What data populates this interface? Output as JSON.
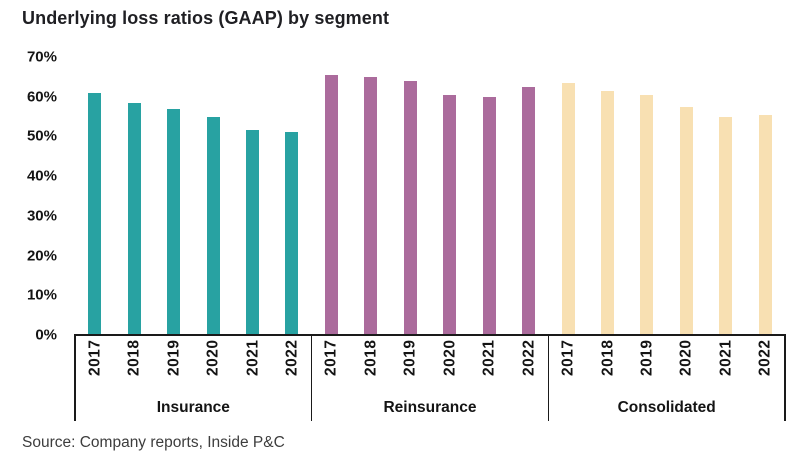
{
  "title": "Underlying loss ratios (GAAP) by segment",
  "source": "Source: Company reports, Inside P&C",
  "chart_data": {
    "type": "bar",
    "title": "Underlying loss ratios (GAAP) by segment",
    "xlabel": "",
    "ylabel": "",
    "ylim": [
      0,
      70
    ],
    "yticks": [
      {
        "label": "70%",
        "value": 70
      },
      {
        "label": "60%",
        "value": 60
      },
      {
        "label": "50%",
        "value": 50
      },
      {
        "label": "40%",
        "value": 40
      },
      {
        "label": "30%",
        "value": 30
      },
      {
        "label": "20%",
        "value": 20
      },
      {
        "label": "10%",
        "value": 10
      },
      {
        "label": "0%",
        "value": 0
      }
    ],
    "grid": false,
    "legend": "none",
    "unit": "%",
    "categories": [
      "2017",
      "2018",
      "2019",
      "2020",
      "2021",
      "2022"
    ],
    "series": [
      {
        "name": "Insurance",
        "color": "#28A2A2",
        "values": [
          61,
          58.5,
          57,
          55,
          51.5,
          51
        ]
      },
      {
        "name": "Reinsurance",
        "color": "#AB6B9C",
        "values": [
          65.5,
          65,
          64,
          60.5,
          60,
          62.5
        ]
      },
      {
        "name": "Consolidated",
        "color": "#F8E0B2",
        "values": [
          63.5,
          61.5,
          60.5,
          57.5,
          55,
          55.5
        ]
      }
    ],
    "source_note": "Source: Company reports, Inside P&C"
  },
  "colors": {
    "axis": "#1a1a1a",
    "text": "#141414",
    "title": "#1f1f23",
    "source": "#3d3d3d",
    "background": "#ffffff"
  }
}
